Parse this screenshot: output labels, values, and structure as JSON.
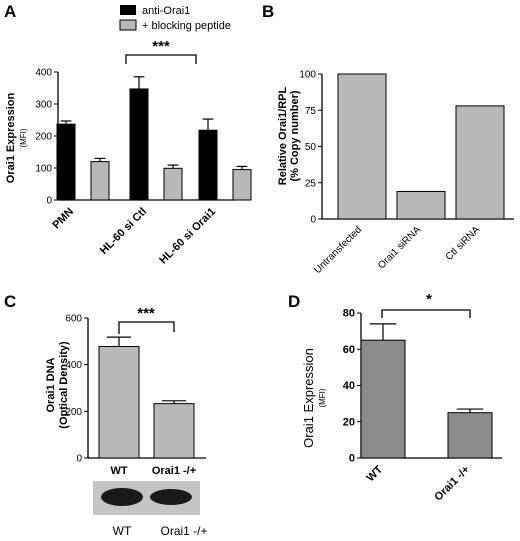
{
  "panel_labels": [
    "A",
    "B",
    "C",
    "D"
  ],
  "colors": {
    "black_series": "#000000",
    "light_gray": "#b8b8b8",
    "mid_gray": "#8c8c8c",
    "axis": "#000000"
  },
  "chart_data": [
    {
      "panel": "A",
      "type": "bar",
      "categories": [
        "PMN",
        "HL-60 si Ctl",
        "HL-60 si Orai1"
      ],
      "series": [
        {
          "name": "anti-Orai1",
          "values": [
            237,
            347,
            218
          ],
          "errors": [
            10,
            38,
            35
          ]
        },
        {
          "name": "+ blocking peptide",
          "values": [
            120,
            99,
            95
          ],
          "errors": [
            10,
            10,
            10
          ]
        }
      ],
      "ylabel": "Orai1 Expression",
      "yunit": "(MFI)",
      "ylim": [
        0,
        400
      ],
      "yticks": [
        "0",
        "100",
        "200",
        "300",
        "400"
      ],
      "legend": "top",
      "significance": "***"
    },
    {
      "panel": "B",
      "type": "bar",
      "categories": [
        "Untransfected",
        "Orai1 siRNA",
        "Ctl siRNA"
      ],
      "values": [
        100,
        19,
        78
      ],
      "ylabel": "Relative Orai1/RPL",
      "ylabel2": "(% Copy number)",
      "ylim": [
        0,
        100
      ],
      "yticks": [
        "0",
        "25",
        "50",
        "75",
        "100"
      ]
    },
    {
      "panel": "C",
      "type": "bar",
      "categories": [
        "WT",
        "Orai1 -/+"
      ],
      "values": [
        478,
        233
      ],
      "errors": [
        40,
        12
      ],
      "ylabel": "Orai1 DNA",
      "ylabel2": "(Optical Density)",
      "ylim": [
        0,
        600
      ],
      "yticks": [
        "0",
        "200",
        "400",
        "600"
      ],
      "significance": "***",
      "blot_labels": [
        "WT",
        "Orai1 -/+"
      ]
    },
    {
      "panel": "D",
      "type": "bar",
      "categories": [
        "WT",
        "Orai1 -/+"
      ],
      "values": [
        65,
        25
      ],
      "errors": [
        9,
        2
      ],
      "ylabel": "Orai1 Expression",
      "yunit": "(MFI)",
      "ylim": [
        0,
        80
      ],
      "yticks": [
        "0",
        "20",
        "40",
        "60",
        "80"
      ],
      "significance": "*"
    }
  ]
}
